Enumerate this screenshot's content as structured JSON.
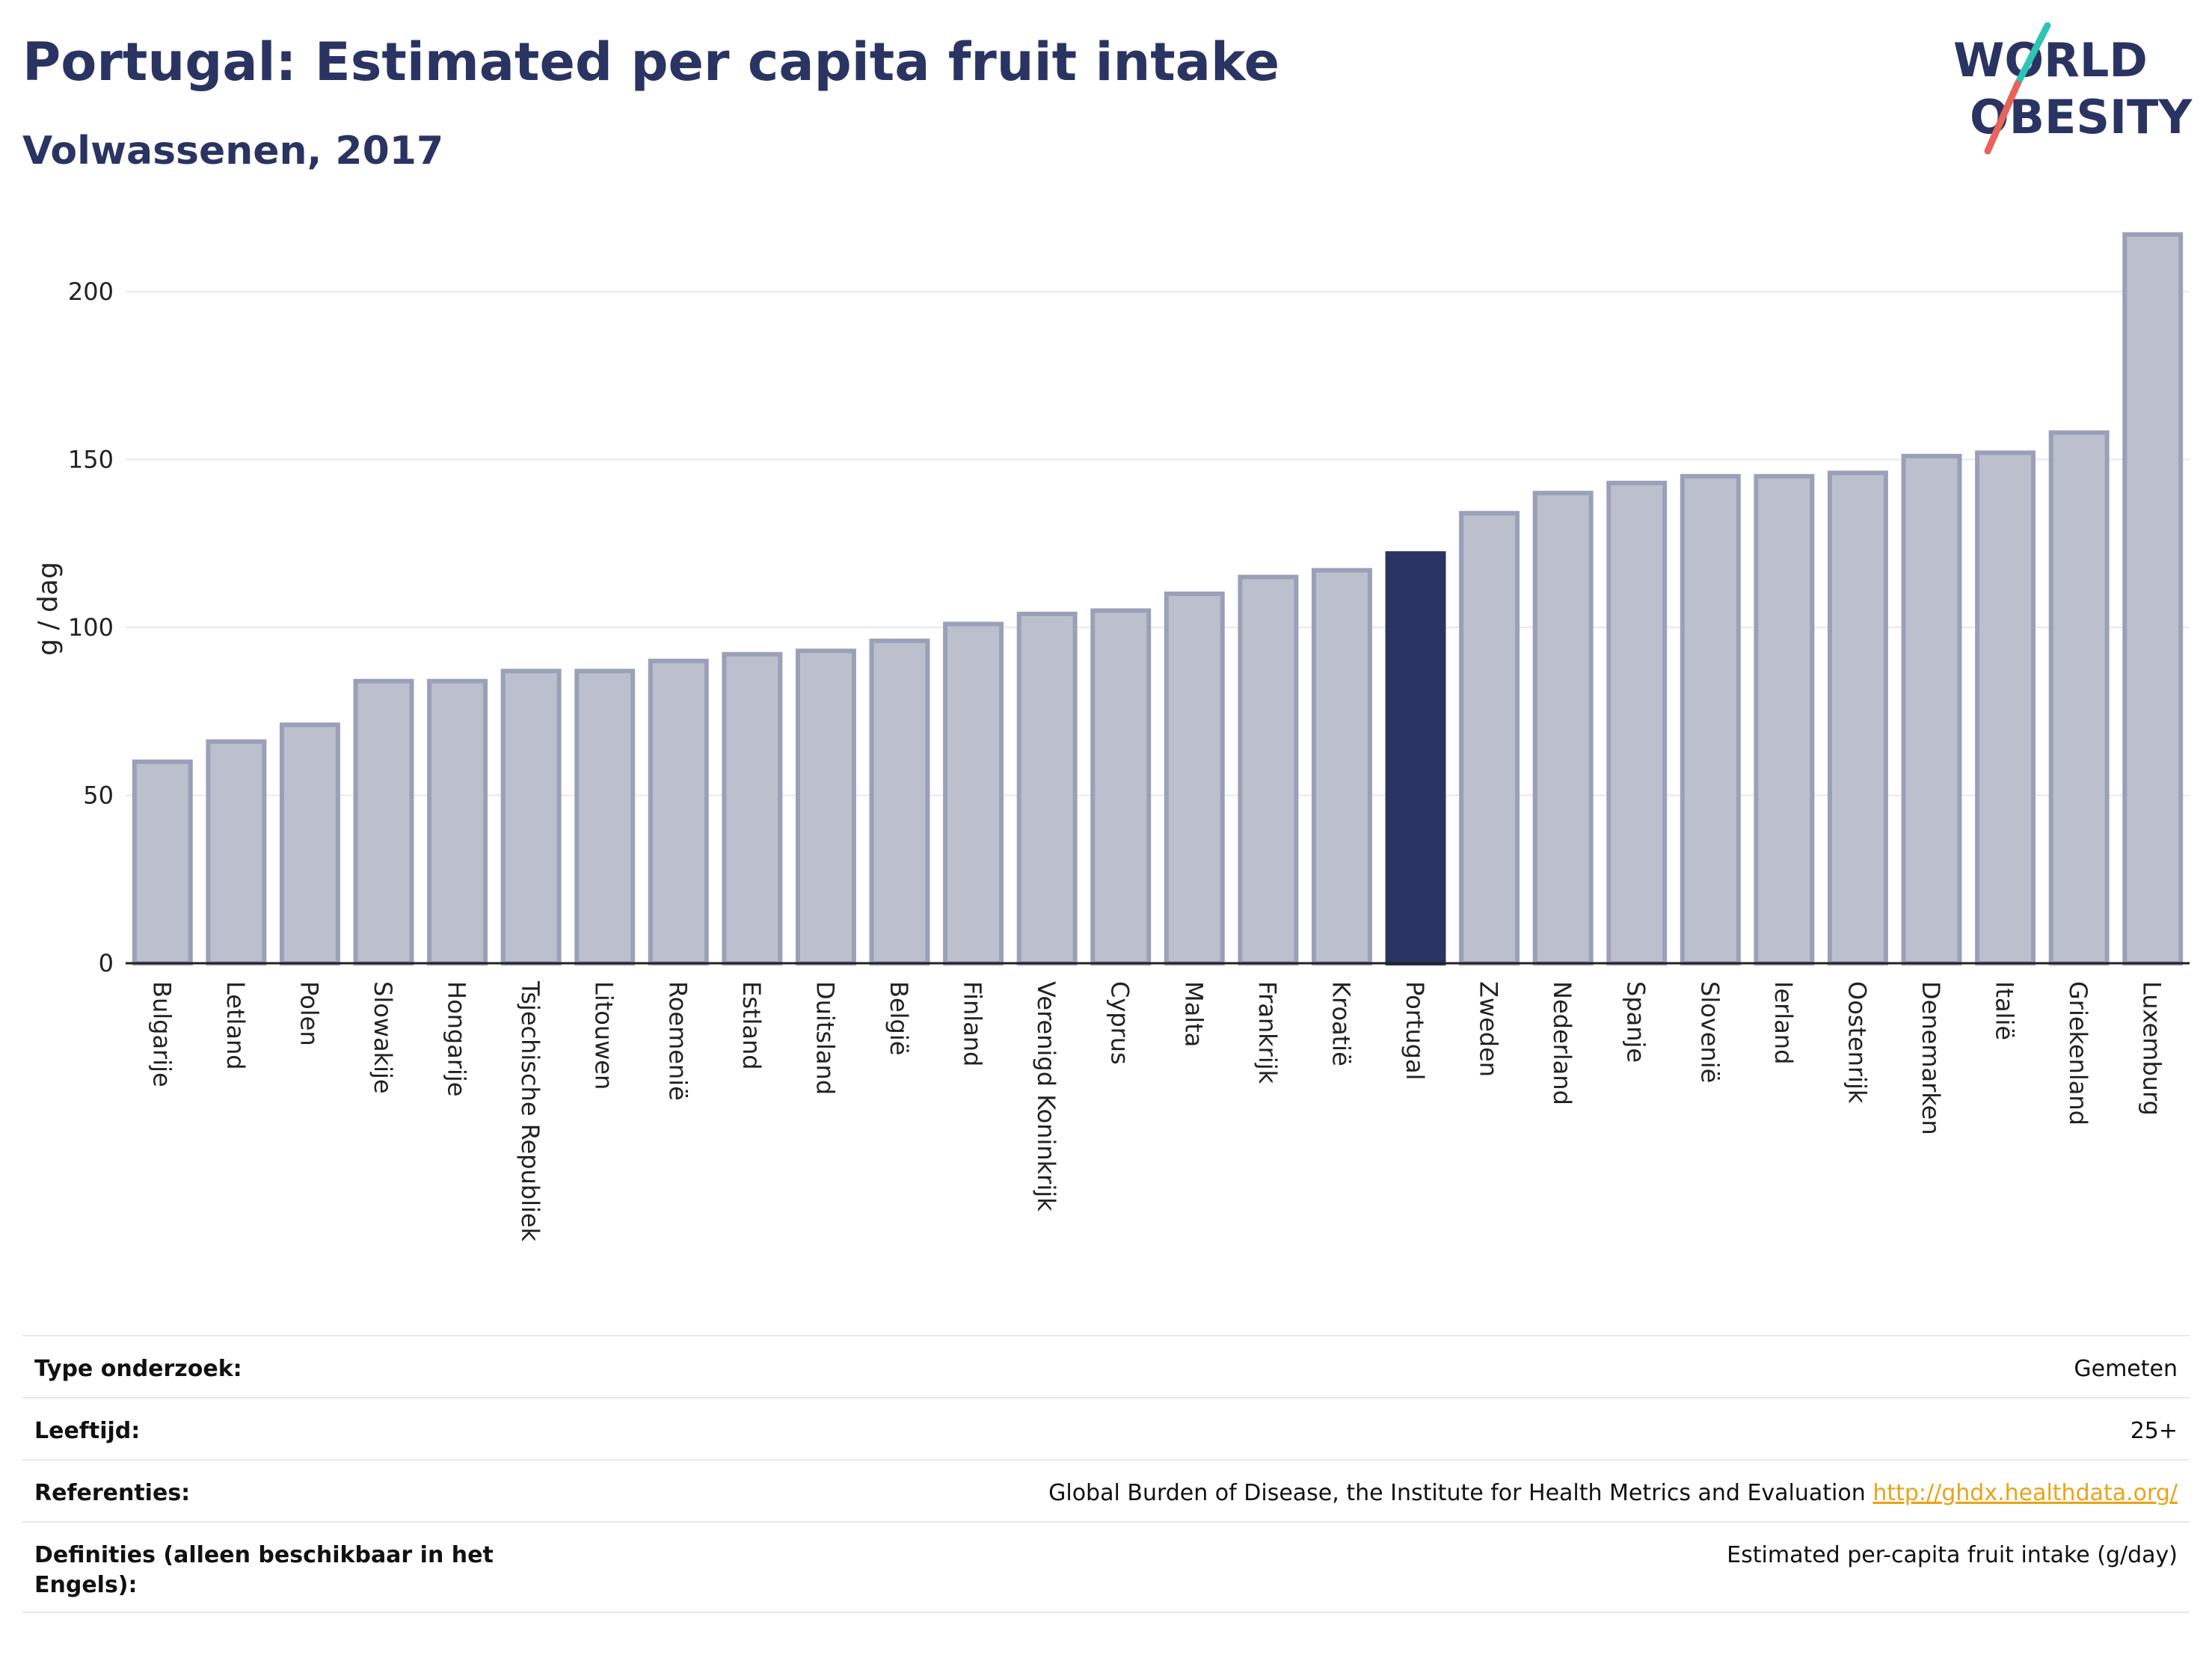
{
  "header": {
    "title": "Portugal: Estimated per capita fruit intake",
    "subtitle": "Volwassenen, 2017"
  },
  "logo": {
    "line1": "WORLD",
    "line2": "OBESITY"
  },
  "colors": {
    "highlight": "#2a3462",
    "bar": "#bcc0cd",
    "bar_border": "#9aa0b8",
    "grid": "#e6e8ef",
    "title": "#2a3462"
  },
  "chart_data": {
    "type": "bar",
    "ylabel": "g / dag",
    "ylim": [
      0,
      220
    ],
    "yticks": [
      0,
      50,
      100,
      150,
      200
    ],
    "grid": true,
    "highlight": "Portugal",
    "categories": [
      "Bulgarije",
      "Letland",
      "Polen",
      "Slowakije",
      "Hongarije",
      "Tsjechische Republiek",
      "Litouwen",
      "Roemenië",
      "Estland",
      "Duitsland",
      "België",
      "Finland",
      "Verenigd Koninkrijk",
      "Cyprus",
      "Malta",
      "Frankrijk",
      "Kroatië",
      "Portugal",
      "Zweden",
      "Nederland",
      "Spanje",
      "Slovenië",
      "Ierland",
      "Oostenrijk",
      "Denemarken",
      "Italië",
      "Griekenland",
      "Luxemburg"
    ],
    "values": [
      60,
      66,
      71,
      84,
      84,
      87,
      87,
      90,
      92,
      93,
      96,
      101,
      104,
      105,
      110,
      115,
      117,
      122,
      134,
      140,
      143,
      145,
      145,
      146,
      151,
      152,
      158,
      217
    ]
  },
  "meta": [
    {
      "label": "Type onderzoek:",
      "value": "Gemeten"
    },
    {
      "label": "Leeftijd:",
      "value": "25+"
    },
    {
      "label": "Referenties:",
      "value": "Global Burden of Disease, the Institute for Health Metrics and Evaluation",
      "link": "http://ghdx.healthdata.org/"
    },
    {
      "label": "Definities (alleen beschikbaar in het Engels):",
      "value": "Estimated per-capita fruit intake (g/day)"
    }
  ]
}
